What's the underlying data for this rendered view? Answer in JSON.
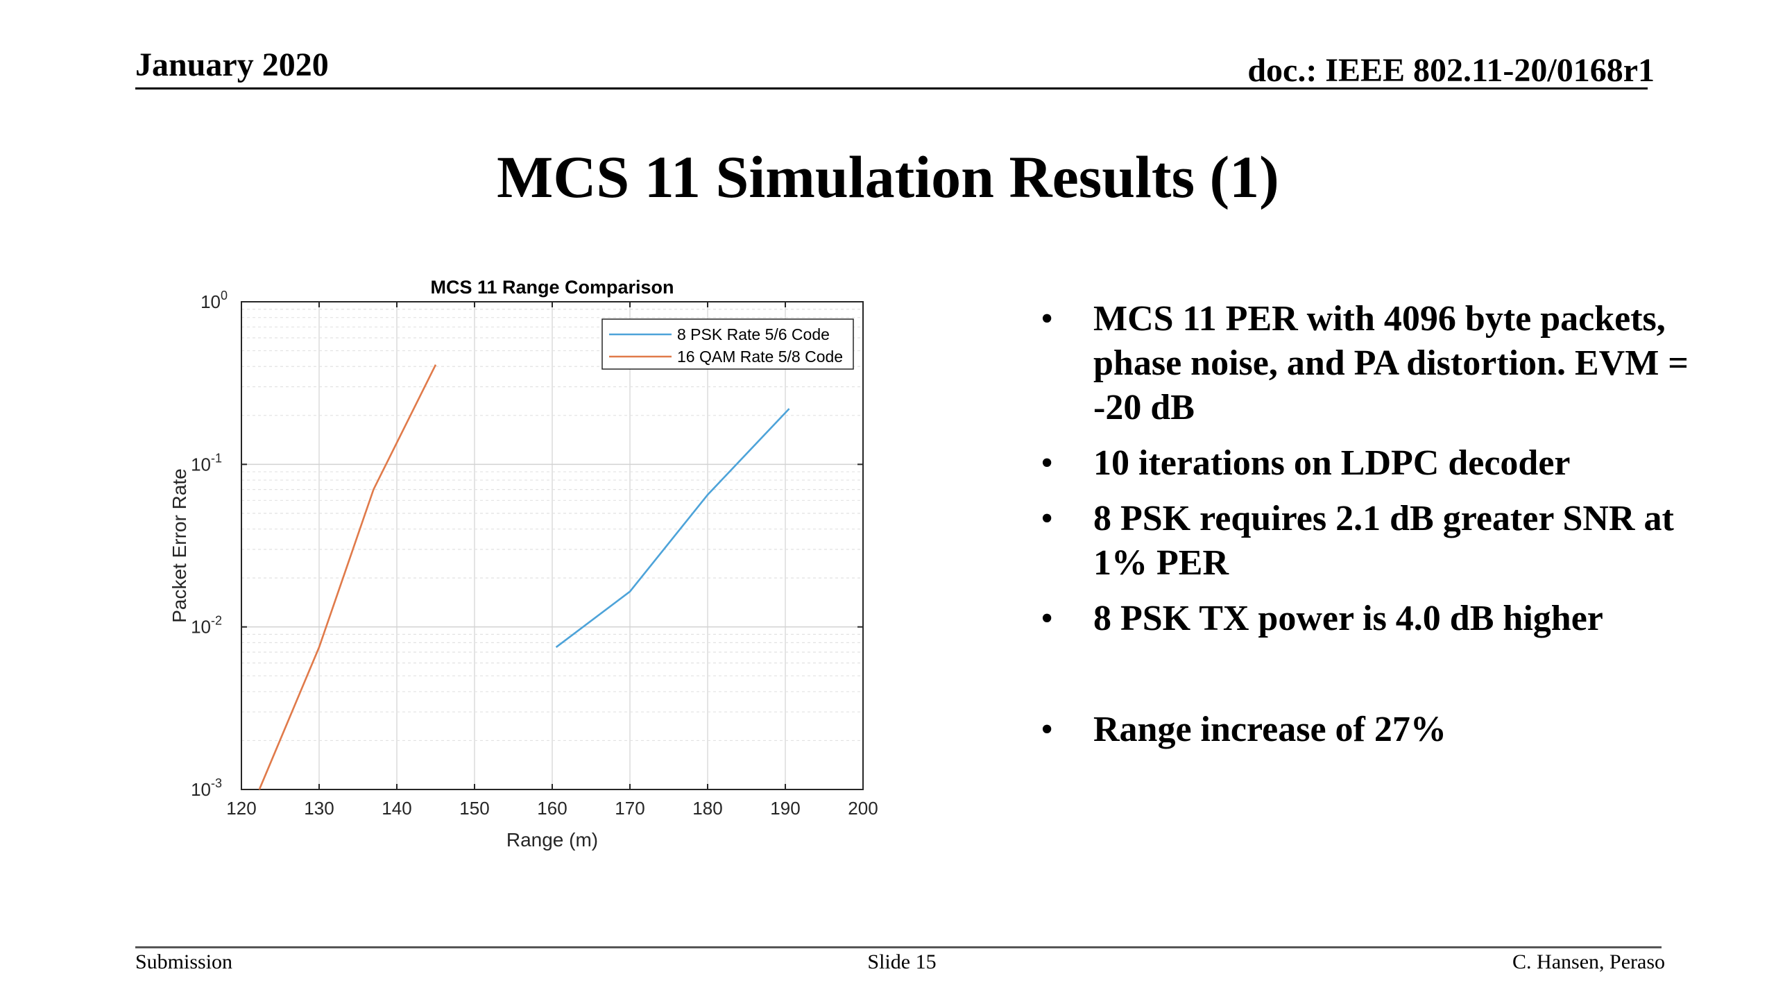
{
  "header": {
    "date": "January 2020",
    "doc_id": "doc.: IEEE 802.11-20/0168r1"
  },
  "slide": {
    "title": "MCS 11 Simulation Results (1)",
    "bullets": [
      "MCS 11 PER with 4096 byte packets, phase noise, and PA distortion. EVM = -20 dB",
      "10 iterations on LDPC decoder",
      "8 PSK requires 2.1 dB greater SNR at 1% PER",
      "8 PSK TX power is 4.0 dB higher",
      "Range increase of 27%"
    ],
    "bullet_symbol": "•"
  },
  "footer": {
    "left": "Submission",
    "center": "Slide 15",
    "right": "C. Hansen, Peraso"
  },
  "chart_data": {
    "type": "line",
    "title": "MCS 11 Range Comparison",
    "xlabel": "Range (m)",
    "ylabel": "Packet Error Rate",
    "xlim": [
      120,
      200
    ],
    "ylim": [
      0.001,
      1
    ],
    "yscale": "log",
    "grid": true,
    "legend_position": "top-right",
    "x_ticks": [
      "120",
      "130",
      "140",
      "150",
      "160",
      "170",
      "180",
      "190",
      "200"
    ],
    "y_ticks": [
      {
        "base": "10",
        "exp": "0",
        "value": 1
      },
      {
        "base": "10",
        "exp": "-1",
        "value": 0.1
      },
      {
        "base": "10",
        "exp": "-2",
        "value": 0.01
      },
      {
        "base": "10",
        "exp": "-3",
        "value": 0.001
      }
    ],
    "series": [
      {
        "name": "8 PSK Rate 5/6 Code",
        "color": "#4da3d9",
        "x": [
          160.5,
          170,
          180,
          190.5
        ],
        "y": [
          0.0075,
          0.0165,
          0.065,
          0.22
        ]
      },
      {
        "name": "16 QAM Rate 5/8 Code",
        "color": "#e07a4a",
        "x": [
          122.3,
          130,
          137,
          145
        ],
        "y": [
          0.001,
          0.0075,
          0.07,
          0.41
        ]
      }
    ]
  }
}
